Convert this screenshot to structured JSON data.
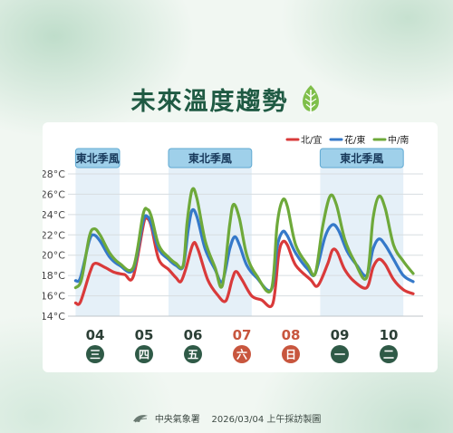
{
  "title": "未來溫度趨勢",
  "footer": {
    "agency": "中央氣象署",
    "issued": "2026/03/04 上午採訪製圖"
  },
  "chart_data": {
    "type": "line",
    "title": "未來溫度趨勢",
    "ylim": [
      14,
      28
    ],
    "y_ticks": [
      "14°C",
      "16°C",
      "18°C",
      "20°C",
      "22°C",
      "24°C",
      "26°C",
      "28°C"
    ],
    "legend_position": "top-right",
    "days": [
      {
        "date": "04",
        "weekday": "三",
        "weekend": false
      },
      {
        "date": "05",
        "weekday": "四",
        "weekend": false
      },
      {
        "date": "06",
        "weekday": "五",
        "weekend": false
      },
      {
        "date": "07",
        "weekday": "六",
        "weekend": true
      },
      {
        "date": "08",
        "weekday": "日",
        "weekend": true
      },
      {
        "date": "09",
        "weekday": "一",
        "weekend": false
      },
      {
        "date": "10",
        "weekday": "二",
        "weekend": false
      }
    ],
    "monsoon_label": "東北季風",
    "monsoon_periods": [
      [
        3.6,
        4.5
      ],
      [
        5.5,
        7.2
      ],
      [
        8.6,
        10.3
      ]
    ],
    "x_range": [
      3.6,
      10.5
    ],
    "series": [
      {
        "name": "北/宜",
        "color": "#d93a3a",
        "points": [
          [
            3.6,
            15.3
          ],
          [
            3.7,
            15.4
          ],
          [
            3.9,
            18.4
          ],
          [
            4.0,
            19.2
          ],
          [
            4.2,
            18.8
          ],
          [
            4.4,
            18.3
          ],
          [
            4.6,
            18.1
          ],
          [
            4.78,
            17.9
          ],
          [
            5.0,
            23.3
          ],
          [
            5.07,
            23.6
          ],
          [
            5.15,
            22.8
          ],
          [
            5.3,
            19.6
          ],
          [
            5.5,
            18.6
          ],
          [
            5.65,
            17.8
          ],
          [
            5.75,
            17.4
          ],
          [
            5.85,
            18.6
          ],
          [
            6.0,
            21.1
          ],
          [
            6.1,
            20.6
          ],
          [
            6.3,
            17.6
          ],
          [
            6.5,
            16.1
          ],
          [
            6.67,
            15.5
          ],
          [
            6.8,
            17.6
          ],
          [
            6.88,
            18.4
          ],
          [
            7.0,
            17.6
          ],
          [
            7.2,
            16.0
          ],
          [
            7.4,
            15.6
          ],
          [
            7.63,
            15.2
          ],
          [
            7.75,
            20.0
          ],
          [
            7.83,
            21.3
          ],
          [
            7.93,
            21.0
          ],
          [
            8.1,
            19.0
          ],
          [
            8.4,
            17.6
          ],
          [
            8.55,
            17.0
          ],
          [
            8.75,
            19.1
          ],
          [
            8.85,
            20.5
          ],
          [
            8.95,
            20.3
          ],
          [
            9.1,
            18.6
          ],
          [
            9.3,
            17.4
          ],
          [
            9.55,
            16.8
          ],
          [
            9.68,
            18.8
          ],
          [
            9.8,
            19.6
          ],
          [
            9.93,
            19.1
          ],
          [
            10.1,
            17.6
          ],
          [
            10.3,
            16.6
          ],
          [
            10.5,
            16.2
          ]
        ]
      },
      {
        "name": "花/東",
        "color": "#3579c9",
        "points": [
          [
            3.6,
            17.5
          ],
          [
            3.7,
            17.8
          ],
          [
            3.88,
            21.4
          ],
          [
            3.97,
            22.0
          ],
          [
            4.1,
            21.4
          ],
          [
            4.3,
            19.8
          ],
          [
            4.5,
            19.0
          ],
          [
            4.78,
            18.6
          ],
          [
            4.98,
            23.3
          ],
          [
            5.07,
            23.8
          ],
          [
            5.15,
            23.0
          ],
          [
            5.3,
            20.6
          ],
          [
            5.5,
            19.6
          ],
          [
            5.65,
            19.0
          ],
          [
            5.8,
            18.9
          ],
          [
            5.9,
            22.4
          ],
          [
            5.98,
            24.4
          ],
          [
            6.08,
            23.8
          ],
          [
            6.25,
            20.6
          ],
          [
            6.45,
            18.6
          ],
          [
            6.6,
            17.4
          ],
          [
            6.75,
            20.6
          ],
          [
            6.85,
            21.8
          ],
          [
            6.95,
            21.0
          ],
          [
            7.1,
            19.0
          ],
          [
            7.3,
            17.8
          ],
          [
            7.6,
            16.6
          ],
          [
            7.72,
            20.8
          ],
          [
            7.83,
            22.3
          ],
          [
            7.93,
            21.9
          ],
          [
            8.1,
            20.2
          ],
          [
            8.35,
            18.6
          ],
          [
            8.5,
            18.2
          ],
          [
            8.7,
            21.8
          ],
          [
            8.85,
            23.0
          ],
          [
            8.98,
            22.4
          ],
          [
            9.15,
            20.4
          ],
          [
            9.35,
            19.0
          ],
          [
            9.55,
            18.0
          ],
          [
            9.68,
            20.6
          ],
          [
            9.8,
            21.6
          ],
          [
            9.93,
            21.0
          ],
          [
            10.1,
            19.6
          ],
          [
            10.3,
            18.0
          ],
          [
            10.5,
            17.4
          ]
        ]
      },
      {
        "name": "中/南",
        "color": "#6ea93a",
        "points": [
          [
            3.6,
            16.8
          ],
          [
            3.72,
            17.6
          ],
          [
            3.88,
            21.8
          ],
          [
            3.98,
            22.6
          ],
          [
            4.1,
            22.0
          ],
          [
            4.3,
            20.2
          ],
          [
            4.5,
            19.2
          ],
          [
            4.78,
            18.8
          ],
          [
            4.98,
            24.0
          ],
          [
            5.07,
            24.5
          ],
          [
            5.15,
            23.8
          ],
          [
            5.3,
            21.0
          ],
          [
            5.5,
            19.8
          ],
          [
            5.65,
            19.2
          ],
          [
            5.8,
            19.0
          ],
          [
            5.88,
            23.2
          ],
          [
            5.98,
            26.4
          ],
          [
            6.08,
            25.6
          ],
          [
            6.25,
            21.4
          ],
          [
            6.45,
            18.8
          ],
          [
            6.6,
            17.0
          ],
          [
            6.75,
            23.0
          ],
          [
            6.83,
            25.0
          ],
          [
            6.95,
            23.6
          ],
          [
            7.1,
            20.0
          ],
          [
            7.3,
            18.0
          ],
          [
            7.6,
            16.6
          ],
          [
            7.72,
            23.0
          ],
          [
            7.83,
            25.4
          ],
          [
            7.93,
            24.8
          ],
          [
            8.1,
            21.0
          ],
          [
            8.35,
            19.0
          ],
          [
            8.5,
            18.2
          ],
          [
            8.65,
            22.8
          ],
          [
            8.8,
            25.8
          ],
          [
            8.93,
            25.0
          ],
          [
            9.1,
            21.6
          ],
          [
            9.3,
            19.4
          ],
          [
            9.55,
            17.8
          ],
          [
            9.68,
            23.6
          ],
          [
            9.8,
            25.8
          ],
          [
            9.93,
            24.6
          ],
          [
            10.1,
            21.0
          ],
          [
            10.3,
            19.4
          ],
          [
            10.5,
            18.2
          ]
        ]
      }
    ]
  }
}
